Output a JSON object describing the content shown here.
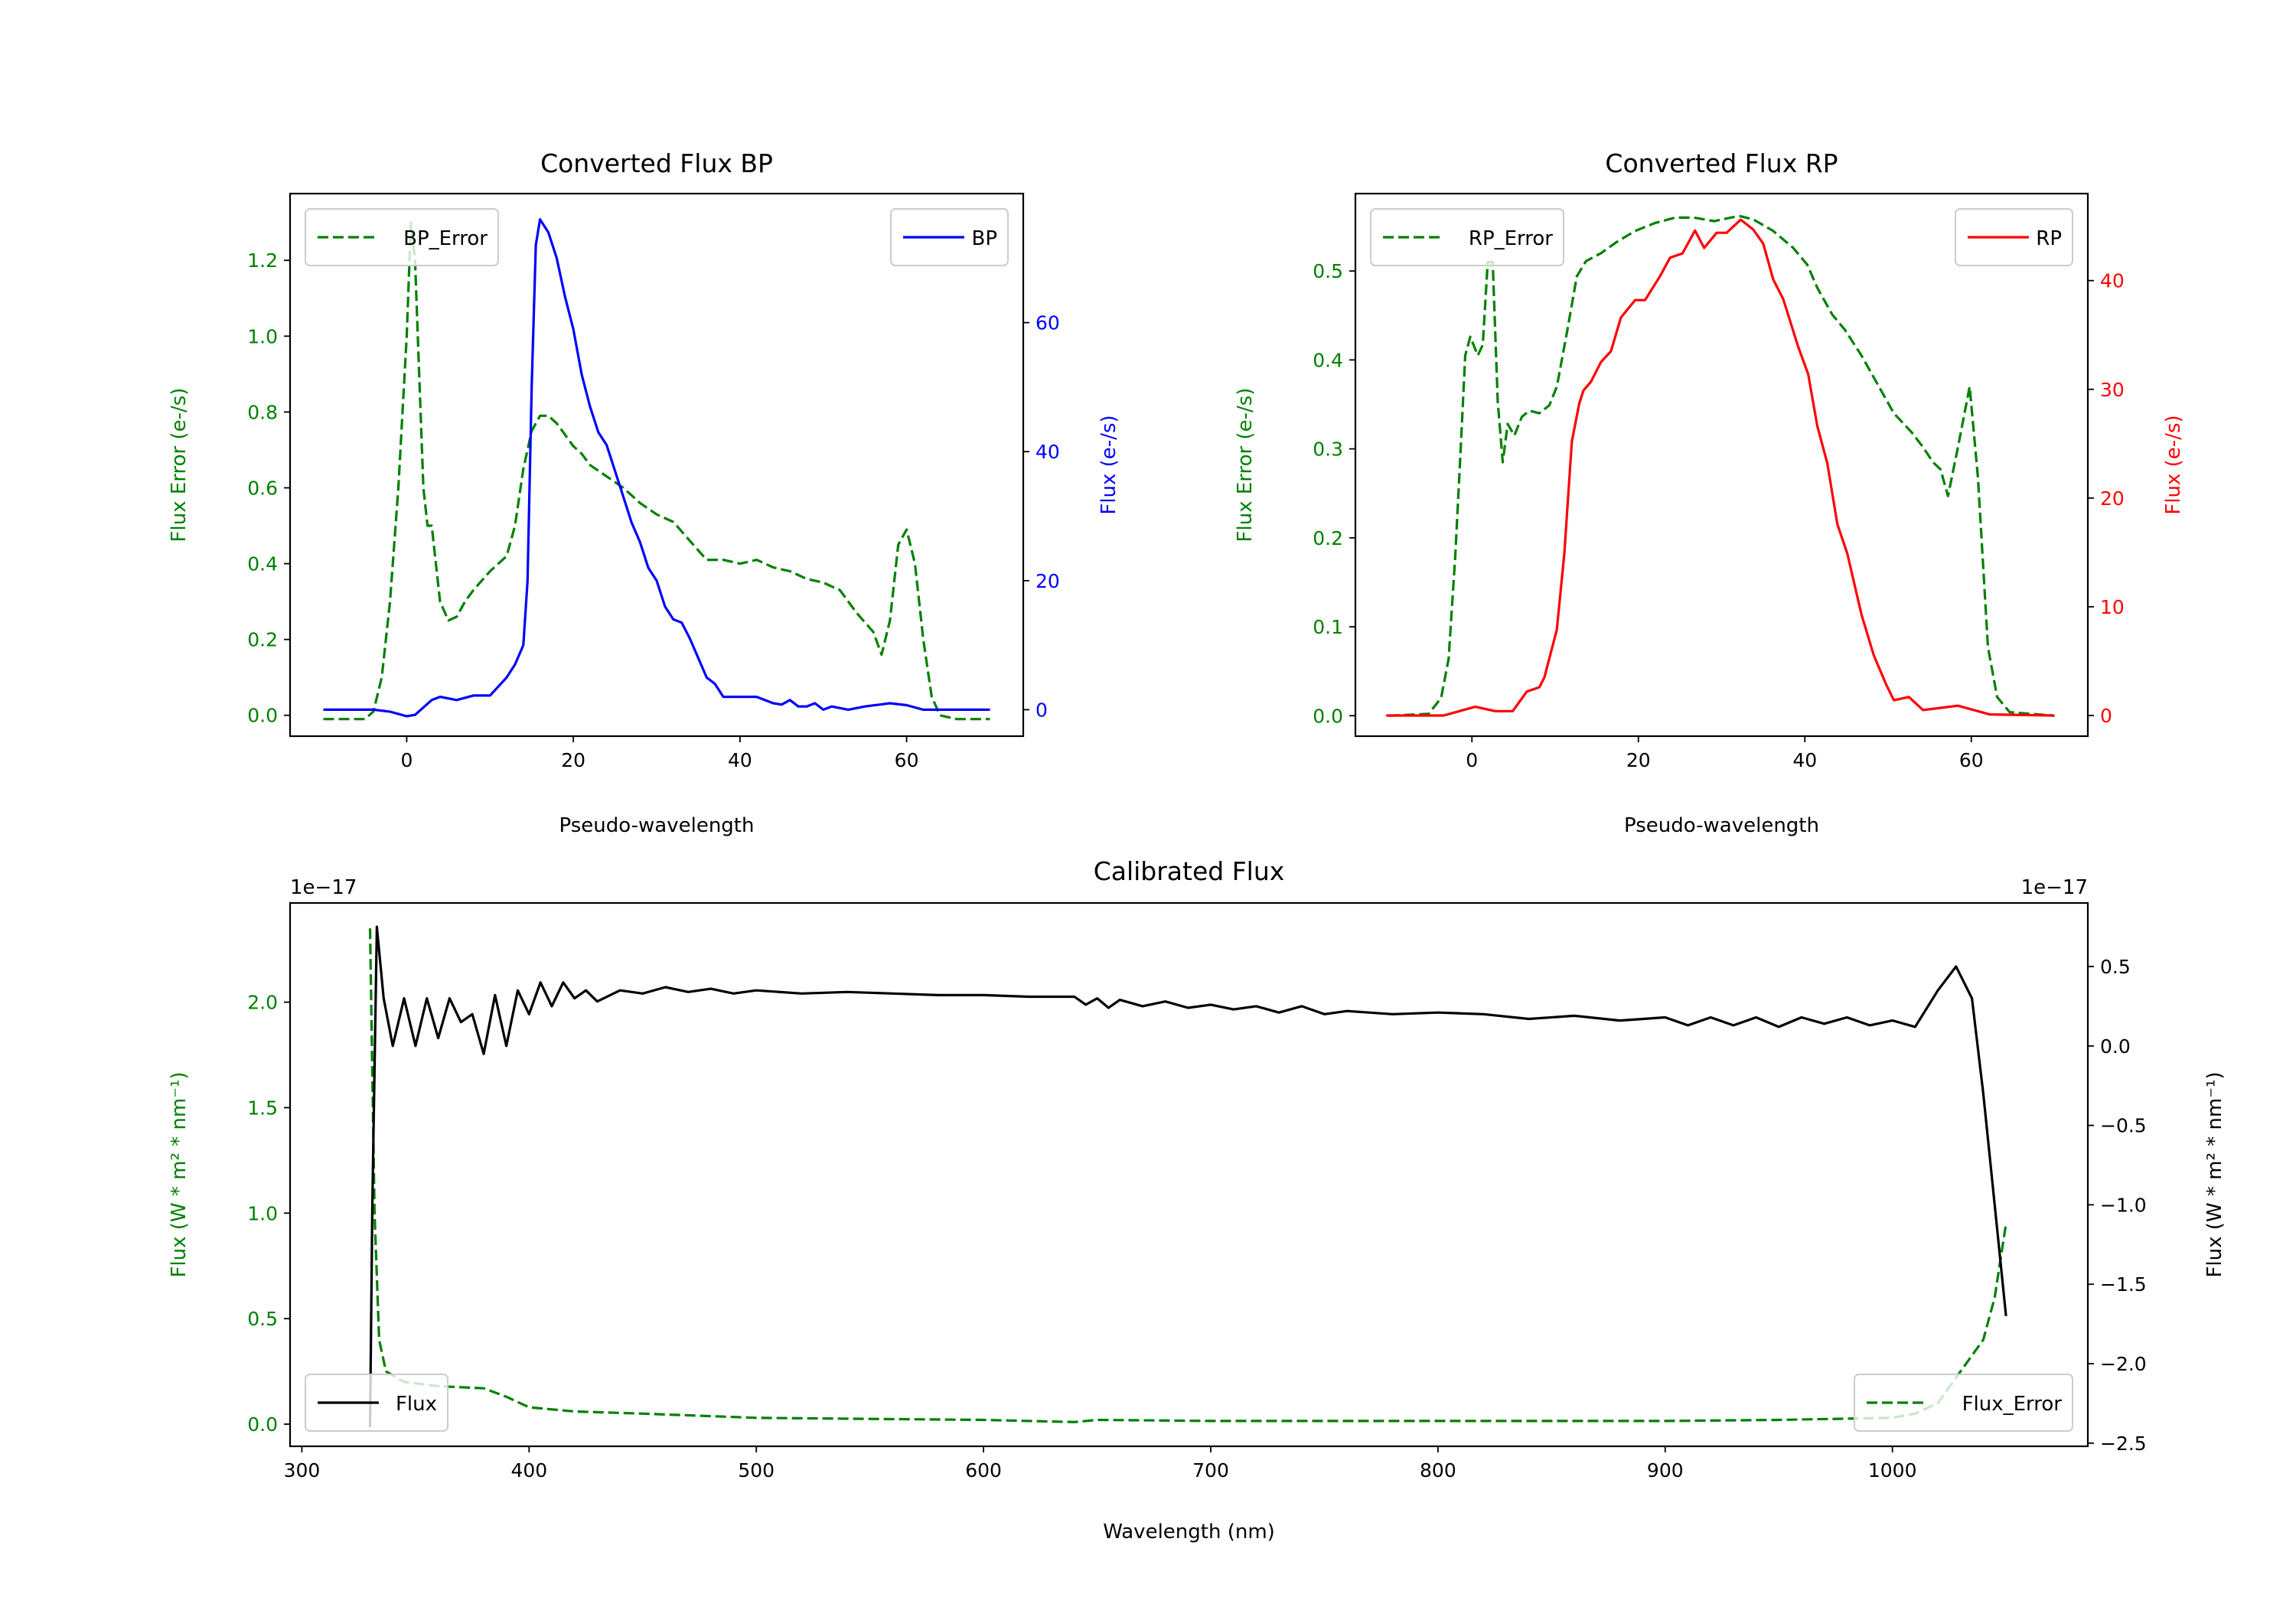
{
  "chart_data": [
    {
      "type": "line",
      "title": "Converted Flux BP",
      "xlabel": "Pseudo-wavelength",
      "ylabel_left": "Flux Error (e-/s)",
      "ylabel_right": "Flux (e-/s)",
      "left_color": "#008000",
      "right_color": "#0000ff",
      "xlim": [
        -14,
        74
      ],
      "ylim_left": [
        -0.055,
        1.376
      ],
      "ylim_right": [
        -4.1,
        80
      ],
      "xticks": {
        "values": [
          0,
          20,
          40,
          60
        ],
        "labels": [
          "0",
          "20",
          "40",
          "60"
        ]
      },
      "yticks_left": {
        "values": [
          0,
          0.2,
          0.4,
          0.6,
          0.8,
          1.0,
          1.2
        ],
        "labels": [
          "0.0",
          "0.2",
          "0.4",
          "0.6",
          "0.8",
          "1.0",
          "1.2"
        ]
      },
      "yticks_right": {
        "values": [
          0,
          20,
          40,
          60
        ],
        "labels": [
          "0",
          "20",
          "40",
          "60"
        ]
      },
      "series": [
        {
          "name": "BP_Error",
          "axis": "left",
          "color": "#008000",
          "dashed": true,
          "x": [
            -10,
            -5,
            -4,
            -3,
            -2,
            -1,
            0,
            0.5,
            1,
            1.5,
            2,
            2.5,
            3,
            4,
            5,
            6,
            7,
            8,
            10,
            12,
            13,
            14,
            15,
            16,
            17,
            18,
            19,
            20,
            21,
            22,
            24,
            26,
            28,
            30,
            32,
            34,
            36,
            38,
            40,
            42,
            44,
            46,
            48,
            50,
            52,
            54,
            56,
            57,
            58,
            59,
            60,
            61,
            62,
            63,
            64,
            66,
            70
          ],
          "y": [
            -0.01,
            -0.01,
            0.01,
            0.1,
            0.3,
            0.6,
            1.0,
            1.3,
            1.2,
            0.9,
            0.6,
            0.5,
            0.5,
            0.3,
            0.25,
            0.26,
            0.3,
            0.33,
            0.38,
            0.42,
            0.5,
            0.65,
            0.75,
            0.79,
            0.79,
            0.77,
            0.74,
            0.71,
            0.69,
            0.66,
            0.63,
            0.6,
            0.56,
            0.53,
            0.51,
            0.46,
            0.41,
            0.41,
            0.4,
            0.41,
            0.39,
            0.38,
            0.36,
            0.35,
            0.33,
            0.27,
            0.22,
            0.16,
            0.25,
            0.45,
            0.49,
            0.4,
            0.2,
            0.05,
            0.0,
            -0.01,
            -0.01
          ]
        },
        {
          "name": "BP",
          "axis": "right",
          "color": "#0000ff",
          "dashed": false,
          "x": [
            -10,
            -4,
            -2,
            0,
            1,
            3,
            4,
            6,
            8,
            10,
            12,
            13,
            14,
            14.5,
            15,
            15.5,
            16,
            17,
            18,
            19,
            20,
            21,
            22,
            23,
            24,
            25,
            26,
            27,
            28,
            29,
            30,
            31,
            32,
            33,
            34,
            35,
            36,
            37,
            38,
            40,
            42,
            44,
            45,
            46,
            47,
            48,
            49,
            50,
            51,
            53,
            55,
            58,
            60,
            62,
            70
          ],
          "y": [
            0,
            0,
            -0.3,
            -1,
            -0.8,
            1.5,
            2,
            1.5,
            2.2,
            2.2,
            5,
            7,
            10,
            20,
            50,
            72,
            76,
            74,
            70,
            64,
            59,
            52,
            47,
            43,
            41,
            37,
            33,
            29,
            26,
            22,
            20,
            16,
            14,
            13.5,
            11,
            8,
            5,
            4,
            2,
            2,
            2,
            1,
            0.8,
            1.5,
            0.5,
            0.5,
            1,
            0,
            0.5,
            0,
            0.5,
            1,
            0.7,
            0,
            0
          ]
        }
      ],
      "legends": [
        {
          "series": "BP_Error",
          "loc": "upper left"
        },
        {
          "series": "BP",
          "loc": "upper right"
        }
      ]
    },
    {
      "type": "line",
      "title": "Converted Flux RP",
      "xlabel": "Pseudo-wavelength",
      "ylabel_left": "Flux Error (e-/s)",
      "ylabel_right": "Flux (e-/s)",
      "left_color": "#008000",
      "right_color": "#ff0000",
      "xlim": [
        -14,
        74
      ],
      "ylim_left": [
        -0.023,
        0.587
      ],
      "ylim_right": [
        -1.9,
        48
      ],
      "xticks": {
        "values": [
          0,
          20,
          40,
          60
        ],
        "labels": [
          "0",
          "20",
          "40",
          "60"
        ]
      },
      "yticks_left": {
        "values": [
          0,
          0.1,
          0.2,
          0.3,
          0.4,
          0.5
        ],
        "labels": [
          "0.0",
          "0.1",
          "0.2",
          "0.3",
          "0.4",
          "0.5"
        ]
      },
      "yticks_right": {
        "values": [
          0,
          10,
          20,
          30,
          40
        ],
        "labels": [
          "0",
          "10",
          "20",
          "30",
          "40"
        ]
      },
      "series": [
        {
          "name": "RP_Error",
          "axis": "left",
          "color": "#008000",
          "dashed": true,
          "x": [
            -10,
            -5.2,
            -3.7,
            -2.8,
            -2,
            -1.4,
            -0.8,
            -0.2,
            0.7,
            1.3,
            1.9,
            2.5,
            3.1,
            3.7,
            4.3,
            5.1,
            6,
            6.9,
            8.1,
            9.3,
            10.2,
            11.4,
            12.6,
            13.7,
            15.5,
            17.3,
            19.6,
            22,
            24.4,
            26.7,
            29.1,
            32.1,
            33.8,
            36.2,
            38.6,
            40.3,
            41.5,
            43.3,
            44.8,
            46.8,
            48.9,
            50.7,
            52.8,
            54.2,
            55.4,
            56.3,
            57.2,
            58.4,
            59.8,
            60.8,
            62,
            63.1,
            64.6,
            70
          ],
          "y": [
            0,
            0.002,
            0.02,
            0.064,
            0.18,
            0.29,
            0.405,
            0.426,
            0.405,
            0.417,
            0.51,
            0.51,
            0.353,
            0.285,
            0.328,
            0.315,
            0.336,
            0.343,
            0.34,
            0.349,
            0.37,
            0.43,
            0.494,
            0.511,
            0.52,
            0.532,
            0.545,
            0.554,
            0.56,
            0.56,
            0.556,
            0.562,
            0.558,
            0.545,
            0.526,
            0.507,
            0.481,
            0.451,
            0.434,
            0.405,
            0.37,
            0.34,
            0.319,
            0.302,
            0.285,
            0.277,
            0.247,
            0.302,
            0.37,
            0.268,
            0.077,
            0.021,
            0.004,
            0
          ]
        },
        {
          "name": "RP",
          "axis": "right",
          "color": "#ff0000",
          "dashed": false,
          "x": [
            -10.3,
            -3.4,
            0.4,
            2.8,
            4.9,
            6.6,
            8.1,
            8.7,
            10.2,
            11.1,
            12,
            12.9,
            13.4,
            14.3,
            15.5,
            16.7,
            17.9,
            19.6,
            20.8,
            22.6,
            23.8,
            25.3,
            26.8,
            27.9,
            29.4,
            30.6,
            32.3,
            33.8,
            35,
            36.2,
            37.4,
            39.2,
            40.4,
            41.5,
            42.7,
            43.9,
            45.1,
            46.8,
            48.3,
            49.8,
            50.7,
            52.5,
            54.2,
            58.4,
            62.2,
            69.9
          ],
          "y": [
            0,
            0,
            0.8,
            0.4,
            0.4,
            2.2,
            2.6,
            3.5,
            7.9,
            14.9,
            25.2,
            28.7,
            29.9,
            30.7,
            32.5,
            33.5,
            36.6,
            38.2,
            38.2,
            40.4,
            42.1,
            42.5,
            44.6,
            43,
            44.4,
            44.4,
            45.6,
            44.7,
            43.4,
            40.1,
            38.3,
            33.9,
            31.4,
            26.6,
            23.2,
            17.6,
            14.9,
            9.3,
            5.5,
            2.8,
            1.4,
            1.7,
            0.5,
            0.9,
            0.1,
            0
          ]
        }
      ],
      "legends": [
        {
          "series": "RP_Error",
          "loc": "upper left"
        },
        {
          "series": "RP",
          "loc": "upper right"
        }
      ]
    },
    {
      "type": "line",
      "title": "Calibrated Flux",
      "xlabel": "Wavelength (nm)",
      "ylabel_left": "Flux (W * m² * nm⁻¹)",
      "ylabel_right": "Flux (W * m² * nm⁻¹)",
      "left_color": "#008000",
      "right_color": "#000000",
      "offset_left": "1e−17",
      "offset_right": "1e−17",
      "xlim": [
        294.8,
        1086
      ],
      "ylim_left": [
        -0.105,
        2.47
      ],
      "ylim_right": [
        -2.52,
        0.9
      ],
      "xticks": {
        "values": [
          300,
          400,
          500,
          600,
          700,
          800,
          900,
          1000
        ],
        "labels": [
          "300",
          "400",
          "500",
          "600",
          "700",
          "800",
          "900",
          "1000"
        ]
      },
      "yticks_left": {
        "values": [
          0,
          0.5,
          1.0,
          1.5,
          2.0
        ],
        "labels": [
          "0.0",
          "0.5",
          "1.0",
          "1.5",
          "2.0"
        ]
      },
      "yticks_right": {
        "values": [
          -2.5,
          -2.0,
          -1.5,
          -1.0,
          -0.5,
          0.0,
          0.5
        ],
        "labels": [
          "−2.5",
          "−2.0",
          "−1.5",
          "−1.0",
          "−0.5",
          "0.0",
          "0.5"
        ]
      },
      "series": [
        {
          "name": "Flux_Error",
          "axis": "left",
          "color": "#008000",
          "dashed": true,
          "x": [
            330,
            332,
            334,
            337,
            345,
            360,
            380,
            390,
            400,
            420,
            450,
            500,
            550,
            600,
            640,
            650,
            700,
            800,
            900,
            950,
            1000,
            1010,
            1020,
            1030,
            1040,
            1045,
            1050
          ],
          "y": [
            2.35,
            1.0,
            0.4,
            0.25,
            0.2,
            0.18,
            0.17,
            0.13,
            0.08,
            0.06,
            0.05,
            0.03,
            0.025,
            0.02,
            0.01,
            0.02,
            0.015,
            0.015,
            0.015,
            0.02,
            0.03,
            0.05,
            0.1,
            0.25,
            0.4,
            0.6,
            0.95
          ]
        },
        {
          "name": "Flux",
          "axis": "right",
          "color": "#000000",
          "dashed": false,
          "x": [
            330,
            331,
            333,
            336,
            340,
            345,
            350,
            355,
            360,
            365,
            370,
            375,
            380,
            385,
            390,
            395,
            400,
            405,
            410,
            415,
            420,
            425,
            430,
            440,
            450,
            460,
            470,
            480,
            490,
            500,
            520,
            540,
            560,
            580,
            600,
            620,
            640,
            645,
            650,
            655,
            660,
            670,
            680,
            690,
            700,
            710,
            720,
            730,
            740,
            750,
            760,
            780,
            800,
            820,
            840,
            860,
            880,
            900,
            910,
            920,
            930,
            940,
            950,
            960,
            970,
            980,
            990,
            1000,
            1010,
            1020,
            1028,
            1035,
            1040,
            1045,
            1050
          ],
          "y": [
            -2.4,
            -1.0,
            0.75,
            0.3,
            0.0,
            0.3,
            0.0,
            0.3,
            0.05,
            0.3,
            0.15,
            0.2,
            -0.05,
            0.32,
            0.0,
            0.35,
            0.2,
            0.4,
            0.25,
            0.4,
            0.3,
            0.35,
            0.28,
            0.35,
            0.33,
            0.37,
            0.34,
            0.36,
            0.33,
            0.35,
            0.33,
            0.34,
            0.33,
            0.32,
            0.32,
            0.31,
            0.31,
            0.26,
            0.3,
            0.24,
            0.29,
            0.25,
            0.28,
            0.24,
            0.26,
            0.23,
            0.25,
            0.21,
            0.25,
            0.2,
            0.22,
            0.2,
            0.21,
            0.2,
            0.17,
            0.19,
            0.16,
            0.18,
            0.13,
            0.18,
            0.13,
            0.18,
            0.12,
            0.18,
            0.14,
            0.18,
            0.13,
            0.16,
            0.12,
            0.35,
            0.5,
            0.3,
            -0.3,
            -1.0,
            -1.7
          ]
        }
      ],
      "legends": [
        {
          "series": "Flux",
          "loc": "lower left"
        },
        {
          "series": "Flux_Error",
          "loc": "lower right"
        }
      ]
    }
  ]
}
